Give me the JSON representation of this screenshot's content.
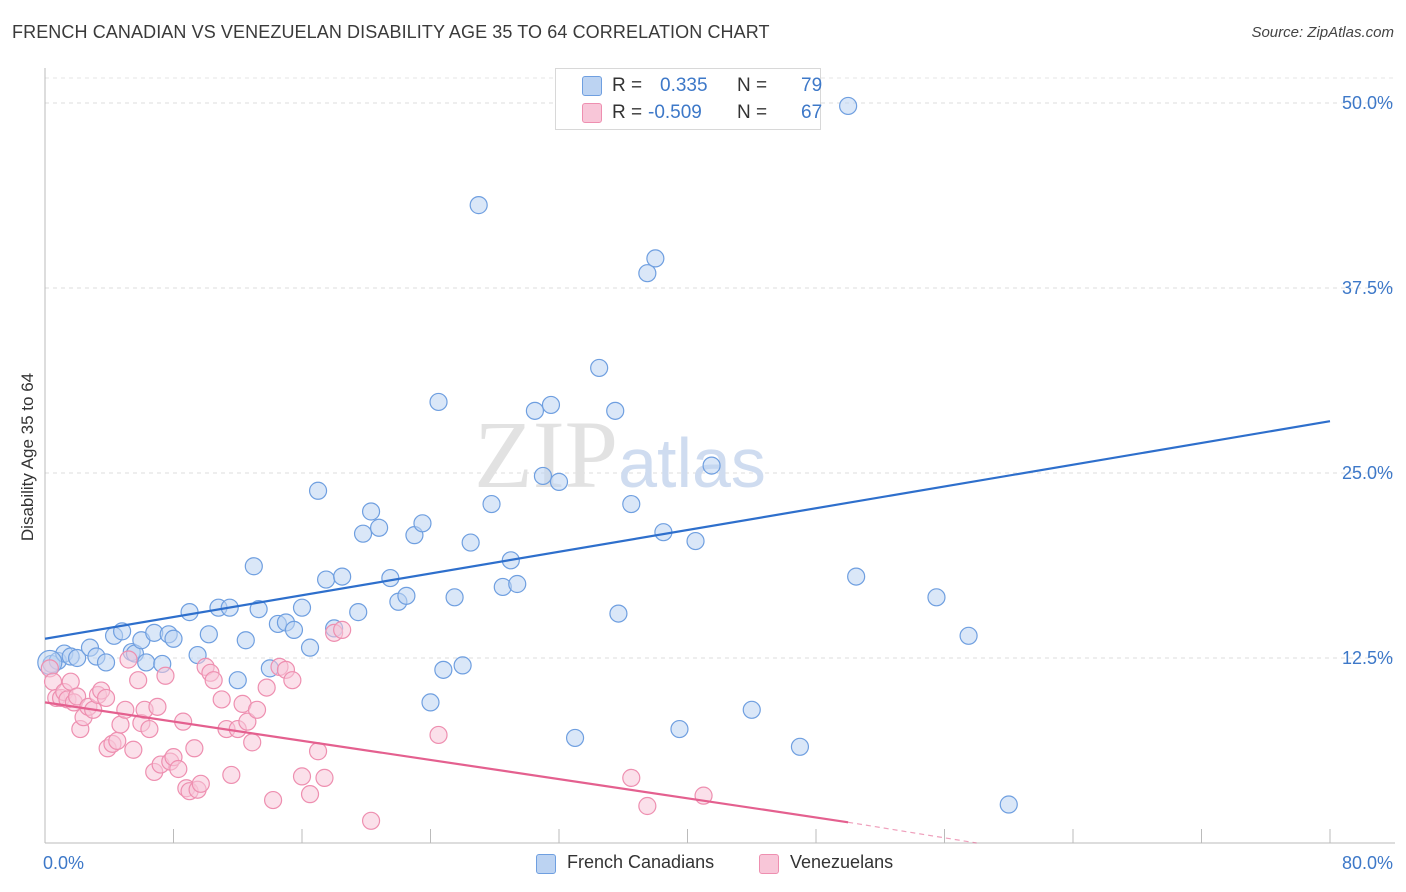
{
  "chart_data": {
    "type": "scatter",
    "title": "FRENCH CANADIAN VS VENEZUELAN DISABILITY AGE 35 TO 64 CORRELATION CHART",
    "source": "Source: ZipAtlas.com",
    "xlabel": "",
    "ylabel": "Disability Age 35 to 64",
    "xlim": [
      0,
      80
    ],
    "ylim": [
      0,
      50
    ],
    "x_tick_labels": {
      "left": "0.0%",
      "right": "80.0%"
    },
    "y_ticks": [
      {
        "value": 12.5,
        "label": "12.5%"
      },
      {
        "value": 25.0,
        "label": "25.0%"
      },
      {
        "value": 37.5,
        "label": "37.5%"
      },
      {
        "value": 50.0,
        "label": "50.0%"
      }
    ],
    "grid": true,
    "watermark": "ZIPatlas",
    "legend": {
      "rows": [
        {
          "r_label": "R =",
          "r_value": "0.335",
          "n_label": "N =",
          "n_value": "79"
        },
        {
          "r_label": "R =",
          "r_value": "-0.509",
          "n_label": "N =",
          "n_value": "67"
        }
      ]
    },
    "series": [
      {
        "name": "French Canadians",
        "color": "#6f9fe0",
        "fill": "#bcd3f2",
        "line_color": "#2e6fcc",
        "trend": {
          "x0": 0,
          "y0": 13.8,
          "x1": 80,
          "y1": 28.5
        },
        "points": [
          [
            0.4,
            12.1
          ],
          [
            0.8,
            12.3
          ],
          [
            1.2,
            12.8
          ],
          [
            1.6,
            12.6
          ],
          [
            2.0,
            12.5
          ],
          [
            2.8,
            13.2
          ],
          [
            3.2,
            12.6
          ],
          [
            3.8,
            12.2
          ],
          [
            4.3,
            14.0
          ],
          [
            4.8,
            14.3
          ],
          [
            5.4,
            12.9
          ],
          [
            5.6,
            12.8
          ],
          [
            6.0,
            13.7
          ],
          [
            6.3,
            12.2
          ],
          [
            6.8,
            14.2
          ],
          [
            7.3,
            12.1
          ],
          [
            7.7,
            14.1
          ],
          [
            8.0,
            13.8
          ],
          [
            9.0,
            15.6
          ],
          [
            9.5,
            12.7
          ],
          [
            10.2,
            14.1
          ],
          [
            10.8,
            15.9
          ],
          [
            11.5,
            15.9
          ],
          [
            12.0,
            11.0
          ],
          [
            12.5,
            13.7
          ],
          [
            13.0,
            18.7
          ],
          [
            13.3,
            15.8
          ],
          [
            14.0,
            11.8
          ],
          [
            14.5,
            14.8
          ],
          [
            15.0,
            14.9
          ],
          [
            15.5,
            14.4
          ],
          [
            16.0,
            15.9
          ],
          [
            16.5,
            13.2
          ],
          [
            17.0,
            23.8
          ],
          [
            17.5,
            17.8
          ],
          [
            18.0,
            14.5
          ],
          [
            18.5,
            18.0
          ],
          [
            19.5,
            15.6
          ],
          [
            19.8,
            20.9
          ],
          [
            20.3,
            22.4
          ],
          [
            20.8,
            21.3
          ],
          [
            21.5,
            17.9
          ],
          [
            22.0,
            16.3
          ],
          [
            22.5,
            16.7
          ],
          [
            23.0,
            20.8
          ],
          [
            23.5,
            21.6
          ],
          [
            24.0,
            9.5
          ],
          [
            24.5,
            29.8
          ],
          [
            24.8,
            11.7
          ],
          [
            25.5,
            16.6
          ],
          [
            26.0,
            12.0
          ],
          [
            26.5,
            20.3
          ],
          [
            27.0,
            43.1
          ],
          [
            27.8,
            22.9
          ],
          [
            28.5,
            17.3
          ],
          [
            29.0,
            19.1
          ],
          [
            29.4,
            17.5
          ],
          [
            30.5,
            29.2
          ],
          [
            31.0,
            24.8
          ],
          [
            31.5,
            29.6
          ],
          [
            32.0,
            24.4
          ],
          [
            33.0,
            7.1
          ],
          [
            34.5,
            32.1
          ],
          [
            35.5,
            29.2
          ],
          [
            35.7,
            15.5
          ],
          [
            36.5,
            22.9
          ],
          [
            37.5,
            38.5
          ],
          [
            38.0,
            39.5
          ],
          [
            38.5,
            21.0
          ],
          [
            39.5,
            7.7
          ],
          [
            40.5,
            20.4
          ],
          [
            41.5,
            25.5
          ],
          [
            44.0,
            9.0
          ],
          [
            47.0,
            6.5
          ],
          [
            50.0,
            49.8
          ],
          [
            50.5,
            18.0
          ],
          [
            55.5,
            16.6
          ],
          [
            57.5,
            14.0
          ],
          [
            60.0,
            2.6
          ]
        ]
      },
      {
        "name": "Venezuelans",
        "color": "#ee8fb0",
        "fill": "#f8c6d8",
        "line_color": "#e4608f",
        "trend": {
          "x0": 0,
          "y0": 9.5,
          "x1": 50,
          "y1": 1.4
        },
        "trend_dashed_to": {
          "x": 58,
          "y": 0.0
        },
        "points": [
          [
            0.3,
            11.8
          ],
          [
            0.5,
            10.9
          ],
          [
            0.7,
            9.8
          ],
          [
            1.0,
            9.8
          ],
          [
            1.2,
            10.2
          ],
          [
            1.4,
            9.7
          ],
          [
            1.6,
            10.9
          ],
          [
            1.8,
            9.5
          ],
          [
            2.0,
            9.9
          ],
          [
            2.2,
            7.7
          ],
          [
            2.4,
            8.5
          ],
          [
            2.7,
            9.2
          ],
          [
            3.0,
            9.0
          ],
          [
            3.3,
            10.0
          ],
          [
            3.5,
            10.3
          ],
          [
            3.8,
            9.8
          ],
          [
            3.9,
            6.4
          ],
          [
            4.2,
            6.7
          ],
          [
            4.5,
            6.9
          ],
          [
            4.7,
            8.0
          ],
          [
            5.0,
            9.0
          ],
          [
            5.2,
            12.4
          ],
          [
            5.5,
            6.3
          ],
          [
            5.8,
            11.0
          ],
          [
            6.0,
            8.1
          ],
          [
            6.2,
            9.0
          ],
          [
            6.5,
            7.7
          ],
          [
            6.8,
            4.8
          ],
          [
            7.0,
            9.2
          ],
          [
            7.2,
            5.3
          ],
          [
            7.5,
            11.3
          ],
          [
            7.8,
            5.5
          ],
          [
            8.0,
            5.8
          ],
          [
            8.3,
            5.0
          ],
          [
            8.6,
            8.2
          ],
          [
            8.8,
            3.7
          ],
          [
            9.0,
            3.5
          ],
          [
            9.3,
            6.4
          ],
          [
            9.5,
            3.6
          ],
          [
            9.7,
            4.0
          ],
          [
            10.0,
            11.9
          ],
          [
            10.3,
            11.5
          ],
          [
            10.5,
            11.0
          ],
          [
            11.0,
            9.7
          ],
          [
            11.3,
            7.7
          ],
          [
            11.6,
            4.6
          ],
          [
            12.0,
            7.7
          ],
          [
            12.3,
            9.4
          ],
          [
            12.6,
            8.2
          ],
          [
            12.9,
            6.8
          ],
          [
            13.2,
            9.0
          ],
          [
            13.8,
            10.5
          ],
          [
            14.2,
            2.9
          ],
          [
            14.6,
            11.9
          ],
          [
            15.0,
            11.7
          ],
          [
            15.4,
            11.0
          ],
          [
            16.0,
            4.5
          ],
          [
            16.5,
            3.3
          ],
          [
            17.0,
            6.2
          ],
          [
            17.4,
            4.4
          ],
          [
            18.0,
            14.2
          ],
          [
            18.5,
            14.4
          ],
          [
            20.3,
            1.5
          ],
          [
            24.5,
            7.3
          ],
          [
            36.5,
            4.4
          ],
          [
            37.5,
            2.5
          ],
          [
            41.0,
            3.2
          ]
        ]
      }
    ]
  }
}
